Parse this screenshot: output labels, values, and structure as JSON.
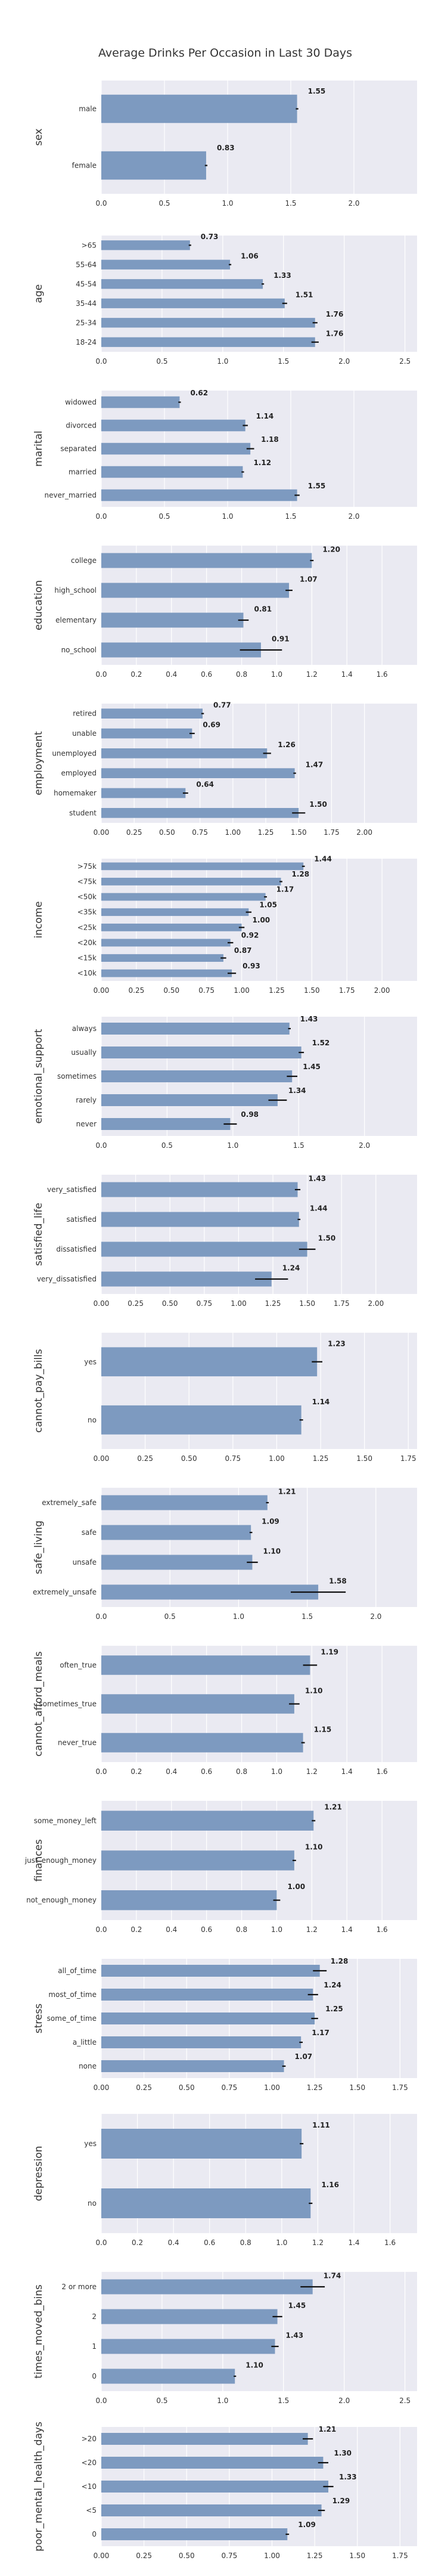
{
  "chart_data": {
    "type": "bar",
    "orientation": "horizontal",
    "title": "Average Drinks Per Occasion in Last 30 Days",
    "colors": {
      "bar": "#7d9ac0",
      "panel_bg": "#eaeaf2",
      "error_bar": "#111111",
      "grid": "#ffffff"
    },
    "grid": true,
    "panels": [
      {
        "ylabel": "sex",
        "xlim": [
          0,
          2.5
        ],
        "ticks": [
          "0.0",
          "0.5",
          "1.0",
          "1.5",
          "2.0"
        ],
        "categories": [
          "male",
          "female"
        ],
        "values": [
          1.55,
          0.83
        ],
        "labels": [
          "1.55",
          "0.83"
        ],
        "err": [
          0.01,
          0.01
        ]
      },
      {
        "ylabel": "age",
        "xlim": [
          0,
          2.6
        ],
        "ticks": [
          "0.0",
          "0.5",
          "1.0",
          "1.5",
          "2.0",
          "2.5"
        ],
        "categories": [
          ">65",
          "55-64",
          "45-54",
          "35-44",
          "25-34",
          "18-24"
        ],
        "values": [
          0.73,
          1.06,
          1.33,
          1.51,
          1.76,
          1.76
        ],
        "labels": [
          "0.73",
          "1.06",
          "1.33",
          "1.51",
          "1.76",
          "1.76"
        ],
        "err": [
          0.01,
          0.01,
          0.01,
          0.02,
          0.02,
          0.03
        ]
      },
      {
        "ylabel": "marital",
        "xlim": [
          0,
          2.5
        ],
        "ticks": [
          "0.0",
          "0.5",
          "1.0",
          "1.5",
          "2.0"
        ],
        "categories": [
          "widowed",
          "divorced",
          "separated",
          "married",
          "never_married"
        ],
        "values": [
          0.62,
          1.14,
          1.18,
          1.12,
          1.55
        ],
        "labels": [
          "0.62",
          "1.14",
          "1.18",
          "1.12",
          "1.55"
        ],
        "err": [
          0.01,
          0.02,
          0.03,
          0.01,
          0.02
        ]
      },
      {
        "ylabel": "education",
        "xlim": [
          0,
          1.8
        ],
        "ticks": [
          "0.0",
          "0.2",
          "0.4",
          "0.6",
          "0.8",
          "1.0",
          "1.2",
          "1.4",
          "1.6"
        ],
        "categories": [
          "college",
          "high_school",
          "elementary",
          "no_school"
        ],
        "values": [
          1.2,
          1.07,
          0.81,
          0.91
        ],
        "labels": [
          "1.20",
          "1.07",
          "0.81",
          "0.91"
        ],
        "err": [
          0.01,
          0.02,
          0.03,
          0.12
        ]
      },
      {
        "ylabel": "employment",
        "xlim": [
          0,
          2.4
        ],
        "ticks": [
          "0.00",
          "0.25",
          "0.50",
          "0.75",
          "1.00",
          "1.25",
          "1.50",
          "1.75",
          "2.00"
        ],
        "categories": [
          "retired",
          "unable",
          "unemployed",
          "employed",
          "homemaker",
          "student"
        ],
        "values": [
          0.77,
          0.69,
          1.26,
          1.47,
          0.64,
          1.5
        ],
        "labels": [
          "0.77",
          "0.69",
          "1.26",
          "1.47",
          "0.64",
          "1.50"
        ],
        "err": [
          0.01,
          0.02,
          0.03,
          0.01,
          0.02,
          0.05
        ]
      },
      {
        "ylabel": "income",
        "xlim": [
          0,
          2.25
        ],
        "ticks": [
          "0.00",
          "0.25",
          "0.50",
          "0.75",
          "1.00",
          "1.25",
          "1.50",
          "1.75",
          "2.00"
        ],
        "categories": [
          ">75k",
          "<75k",
          "<50k",
          "<35k",
          "<25k",
          "<20k",
          "<15k",
          "<10k"
        ],
        "values": [
          1.44,
          1.28,
          1.17,
          1.05,
          1.0,
          0.92,
          0.87,
          0.93
        ],
        "labels": [
          "1.44",
          "1.28",
          "1.17",
          "1.05",
          "1.00",
          "0.92",
          "0.87",
          "0.93"
        ],
        "err": [
          0.01,
          0.01,
          0.01,
          0.02,
          0.02,
          0.02,
          0.02,
          0.03
        ]
      },
      {
        "ylabel": "emotional_support",
        "xlim": [
          0,
          2.4
        ],
        "ticks": [
          "0.0",
          "0.5",
          "1.0",
          "1.5",
          "2.0"
        ],
        "categories": [
          "always",
          "usually",
          "sometimes",
          "rarely",
          "never"
        ],
        "values": [
          1.43,
          1.52,
          1.45,
          1.34,
          0.98
        ],
        "labels": [
          "1.43",
          "1.52",
          "1.45",
          "1.34",
          "0.98"
        ],
        "err": [
          0.01,
          0.02,
          0.04,
          0.07,
          0.05
        ]
      },
      {
        "ylabel": "satisfied_life",
        "xlim": [
          0,
          2.3
        ],
        "ticks": [
          "0.00",
          "0.25",
          "0.50",
          "0.75",
          "1.00",
          "1.25",
          "1.50",
          "1.75",
          "2.00"
        ],
        "categories": [
          "very_satisfied",
          "satisfied",
          "dissatisfied",
          "very_dissatisfied"
        ],
        "values": [
          1.43,
          1.44,
          1.5,
          1.24
        ],
        "labels": [
          "1.43",
          "1.44",
          "1.50",
          "1.24"
        ],
        "err": [
          0.02,
          0.01,
          0.06,
          0.12
        ]
      },
      {
        "ylabel": "cannot_pay_bills",
        "xlim": [
          0,
          1.8
        ],
        "ticks": [
          "0.00",
          "0.25",
          "0.50",
          "0.75",
          "1.00",
          "1.25",
          "1.50",
          "1.75"
        ],
        "categories": [
          "yes",
          "no"
        ],
        "values": [
          1.23,
          1.14
        ],
        "labels": [
          "1.23",
          "1.14"
        ],
        "err": [
          0.03,
          0.01
        ]
      },
      {
        "ylabel": "safe_living",
        "xlim": [
          0,
          2.3
        ],
        "ticks": [
          "0.0",
          "0.5",
          "1.0",
          "1.5",
          "2.0"
        ],
        "categories": [
          "extremely_safe",
          "safe",
          "unsafe",
          "extremely_unsafe"
        ],
        "values": [
          1.21,
          1.09,
          1.1,
          1.58
        ],
        "labels": [
          "1.21",
          "1.09",
          "1.10",
          "1.58"
        ],
        "err": [
          0.01,
          0.01,
          0.04,
          0.2
        ]
      },
      {
        "ylabel": "cannot_afford_meals",
        "xlim": [
          0,
          1.8
        ],
        "ticks": [
          "0.0",
          "0.2",
          "0.4",
          "0.6",
          "0.8",
          "1.0",
          "1.2",
          "1.4",
          "1.6"
        ],
        "categories": [
          "often_true",
          "sometimes_true",
          "never_true"
        ],
        "values": [
          1.19,
          1.1,
          1.15
        ],
        "labels": [
          "1.19",
          "1.10",
          "1.15"
        ],
        "err": [
          0.04,
          0.03,
          0.01
        ]
      },
      {
        "ylabel": "finances",
        "xlim": [
          0,
          1.8
        ],
        "ticks": [
          "0.0",
          "0.2",
          "0.4",
          "0.6",
          "0.8",
          "1.0",
          "1.2",
          "1.4",
          "1.6"
        ],
        "categories": [
          "some_money_left",
          "just_enough_money",
          "not_enough_money"
        ],
        "values": [
          1.21,
          1.1,
          1.0
        ],
        "labels": [
          "1.21",
          "1.10",
          "1.00"
        ],
        "err": [
          0.01,
          0.01,
          0.02
        ]
      },
      {
        "ylabel": "stress",
        "xlim": [
          0,
          1.85
        ],
        "ticks": [
          "0.00",
          "0.25",
          "0.50",
          "0.75",
          "1.00",
          "1.25",
          "1.50",
          "1.75"
        ],
        "categories": [
          "all_of_time",
          "most_of_time",
          "some_of_time",
          "a_little",
          "none"
        ],
        "values": [
          1.28,
          1.24,
          1.25,
          1.17,
          1.07
        ],
        "labels": [
          "1.28",
          "1.24",
          "1.25",
          "1.17",
          "1.07"
        ],
        "err": [
          0.04,
          0.03,
          0.02,
          0.01,
          0.01
        ]
      },
      {
        "ylabel": "depression",
        "xlim": [
          0,
          1.75
        ],
        "ticks": [
          "0.0",
          "0.2",
          "0.4",
          "0.6",
          "0.8",
          "1.0",
          "1.2",
          "1.4",
          "1.6"
        ],
        "categories": [
          "yes",
          "no"
        ],
        "values": [
          1.11,
          1.16
        ],
        "labels": [
          "1.11",
          "1.16"
        ],
        "err": [
          0.01,
          0.01
        ]
      },
      {
        "ylabel": "times_moved_bins",
        "xlim": [
          0,
          2.6
        ],
        "ticks": [
          "0.0",
          "0.5",
          "1.0",
          "1.5",
          "2.0",
          "2.5"
        ],
        "categories": [
          "2 or more",
          "2",
          "1",
          "0"
        ],
        "values": [
          1.74,
          1.45,
          1.43,
          1.1
        ],
        "labels": [
          "1.74",
          "1.45",
          "1.43",
          "1.10"
        ],
        "err": [
          0.1,
          0.04,
          0.03,
          0.01
        ]
      },
      {
        "ylabel": "poor_mental_health_days",
        "xlim": [
          0,
          1.85
        ],
        "ticks": [
          "0.00",
          "0.25",
          "0.50",
          "0.75",
          "1.00",
          "1.25",
          "1.50",
          "1.75"
        ],
        "categories": [
          ">20",
          "<20",
          "<10",
          "<5",
          "0"
        ],
        "values": [
          1.21,
          1.3,
          1.33,
          1.29,
          1.09
        ],
        "labels": [
          "1.21",
          "1.30",
          "1.33",
          "1.29",
          "1.09"
        ],
        "err": [
          0.03,
          0.03,
          0.03,
          0.02,
          0.01
        ]
      }
    ]
  }
}
